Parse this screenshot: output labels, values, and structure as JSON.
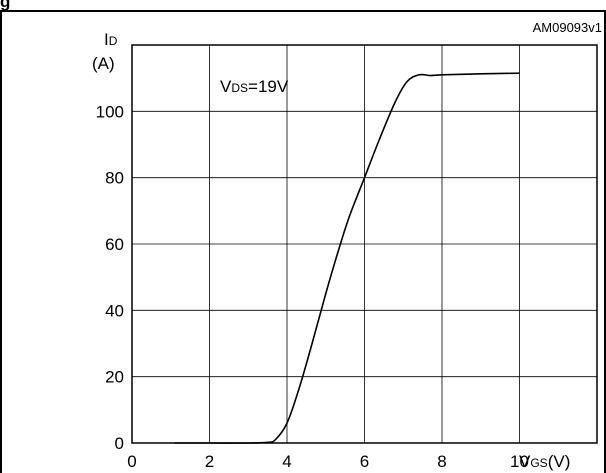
{
  "header_fragment": "g",
  "chart_data": {
    "type": "line",
    "figure_code": "AM09093v1",
    "annotation": {
      "prefix": "V",
      "sub": "DS",
      "rest": "=19V"
    },
    "ylabel": {
      "main": "I",
      "sub": "D",
      "unit": "(A)"
    },
    "xlabel": {
      "main": "V",
      "sub": "GS",
      "unit": "(V)"
    },
    "xlim": [
      0,
      12
    ],
    "ylim": [
      0,
      120
    ],
    "x_ticks": [
      "0",
      "2",
      "4",
      "6",
      "8",
      "10"
    ],
    "y_ticks": [
      "0",
      "20",
      "40",
      "60",
      "80",
      "100"
    ],
    "grid": true,
    "series": [
      {
        "points": [
          [
            1.1,
            0
          ],
          [
            2.0,
            0
          ],
          [
            3.0,
            0
          ],
          [
            3.5,
            0.2
          ],
          [
            3.7,
            1
          ],
          [
            4.0,
            6
          ],
          [
            4.3,
            16
          ],
          [
            4.6,
            28
          ],
          [
            5.0,
            45
          ],
          [
            5.3,
            57
          ],
          [
            5.6,
            68
          ],
          [
            6.0,
            80
          ],
          [
            6.4,
            92
          ],
          [
            6.8,
            103
          ],
          [
            7.1,
            109
          ],
          [
            7.4,
            111
          ],
          [
            7.7,
            110.8
          ],
          [
            8.0,
            111
          ],
          [
            9.0,
            111.3
          ],
          [
            10.0,
            111.5
          ]
        ]
      }
    ]
  }
}
